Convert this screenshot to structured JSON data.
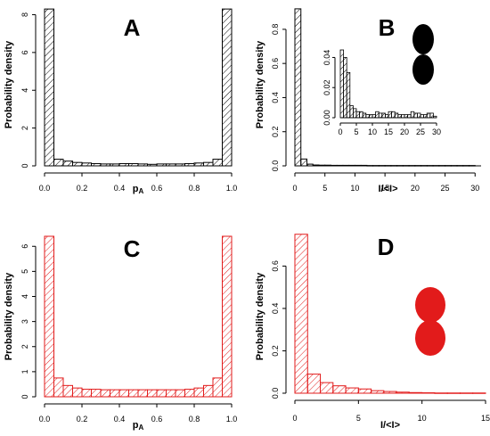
{
  "chart_data": [
    {
      "panel": "A",
      "type": "bar",
      "color": "#000000",
      "xlabel": "p",
      "xlabel_sub": "A",
      "ylabel": "Probability density",
      "xlim": [
        0,
        1
      ],
      "ylim": [
        0,
        8.4
      ],
      "xticks": [
        "0.0",
        "0.2",
        "0.4",
        "0.6",
        "0.8",
        "1.0"
      ],
      "yticks": [
        "0",
        "2",
        "4",
        "6",
        "8"
      ],
      "bin_width": 0.05,
      "values": [
        8.3,
        0.35,
        0.25,
        0.18,
        0.15,
        0.12,
        0.1,
        0.1,
        0.12,
        0.12,
        0.1,
        0.08,
        0.1,
        0.1,
        0.1,
        0.12,
        0.15,
        0.18,
        0.35,
        8.3
      ]
    },
    {
      "panel": "B",
      "type": "bar",
      "color": "#000000",
      "xlabel": "I/<I>",
      "ylabel": "Probability density",
      "xlim": [
        0,
        31
      ],
      "ylim": [
        0,
        0.93
      ],
      "xticks": [
        "0",
        "5",
        "10",
        "15",
        "20",
        "25",
        "30"
      ],
      "yticks": [
        "0.0",
        "0.2",
        "0.4",
        "0.6",
        "0.8"
      ],
      "bin_width": 1,
      "values": [
        0.92,
        0.04,
        0.01,
        0.005,
        0.004,
        0.004,
        0.003,
        0.003,
        0.003,
        0.003,
        0.003,
        0.003,
        0.002,
        0.002,
        0.002,
        0.002,
        0.002,
        0.002,
        0.002,
        0.002,
        0.002,
        0.002,
        0.002,
        0.002,
        0.002,
        0.002,
        0.002,
        0.002,
        0.002,
        0.002
      ],
      "inset": {
        "xlim": [
          0,
          30
        ],
        "ylim": [
          0,
          0.045
        ],
        "xticks": [
          "0",
          "5",
          "10",
          "15",
          "20",
          "25",
          "30"
        ],
        "yticks": [
          "0.00",
          "0.02",
          "0.04"
        ],
        "bin_width": 1,
        "values": [
          0.045,
          0.04,
          0.03,
          0.008,
          0.006,
          0.004,
          0.004,
          0.003,
          0.002,
          0.002,
          0.002,
          0.004,
          0.003,
          0.003,
          0.002,
          0.004,
          0.004,
          0.003,
          0.002,
          0.002,
          0.002,
          0.002,
          0.004,
          0.003,
          0.003,
          0.002,
          0.002,
          0.003,
          0.003,
          0.001
        ]
      },
      "shape_color": "#000000"
    },
    {
      "panel": "C",
      "type": "bar",
      "color": "#e21b1b",
      "xlabel": "p",
      "xlabel_sub": "A",
      "ylabel": "Probability density",
      "xlim": [
        0,
        1
      ],
      "ylim": [
        0,
        6.4
      ],
      "xticks": [
        "0.0",
        "0.2",
        "0.4",
        "0.6",
        "0.8",
        "1.0"
      ],
      "yticks": [
        "0",
        "1",
        "2",
        "3",
        "4",
        "5",
        "6"
      ],
      "bin_width": 0.05,
      "values": [
        6.4,
        0.75,
        0.45,
        0.35,
        0.3,
        0.3,
        0.28,
        0.28,
        0.28,
        0.28,
        0.28,
        0.28,
        0.28,
        0.28,
        0.28,
        0.3,
        0.35,
        0.45,
        0.75,
        6.4
      ]
    },
    {
      "panel": "D",
      "type": "bar",
      "color": "#e21b1b",
      "xlabel": "I/<I>",
      "ylabel": "Probability density",
      "xlim": [
        0,
        15
      ],
      "ylim": [
        0,
        0.77
      ],
      "xticks": [
        "0",
        "5",
        "10",
        "15"
      ],
      "yticks": [
        "0.0",
        "0.2",
        "0.4",
        "0.6"
      ],
      "bin_width": 1,
      "values": [
        0.75,
        0.09,
        0.05,
        0.035,
        0.025,
        0.02,
        0.012,
        0.008,
        0.005,
        0.003,
        0.002,
        0.001,
        0.001,
        0.001,
        0.001
      ],
      "shape_color": "#e21b1b"
    }
  ]
}
